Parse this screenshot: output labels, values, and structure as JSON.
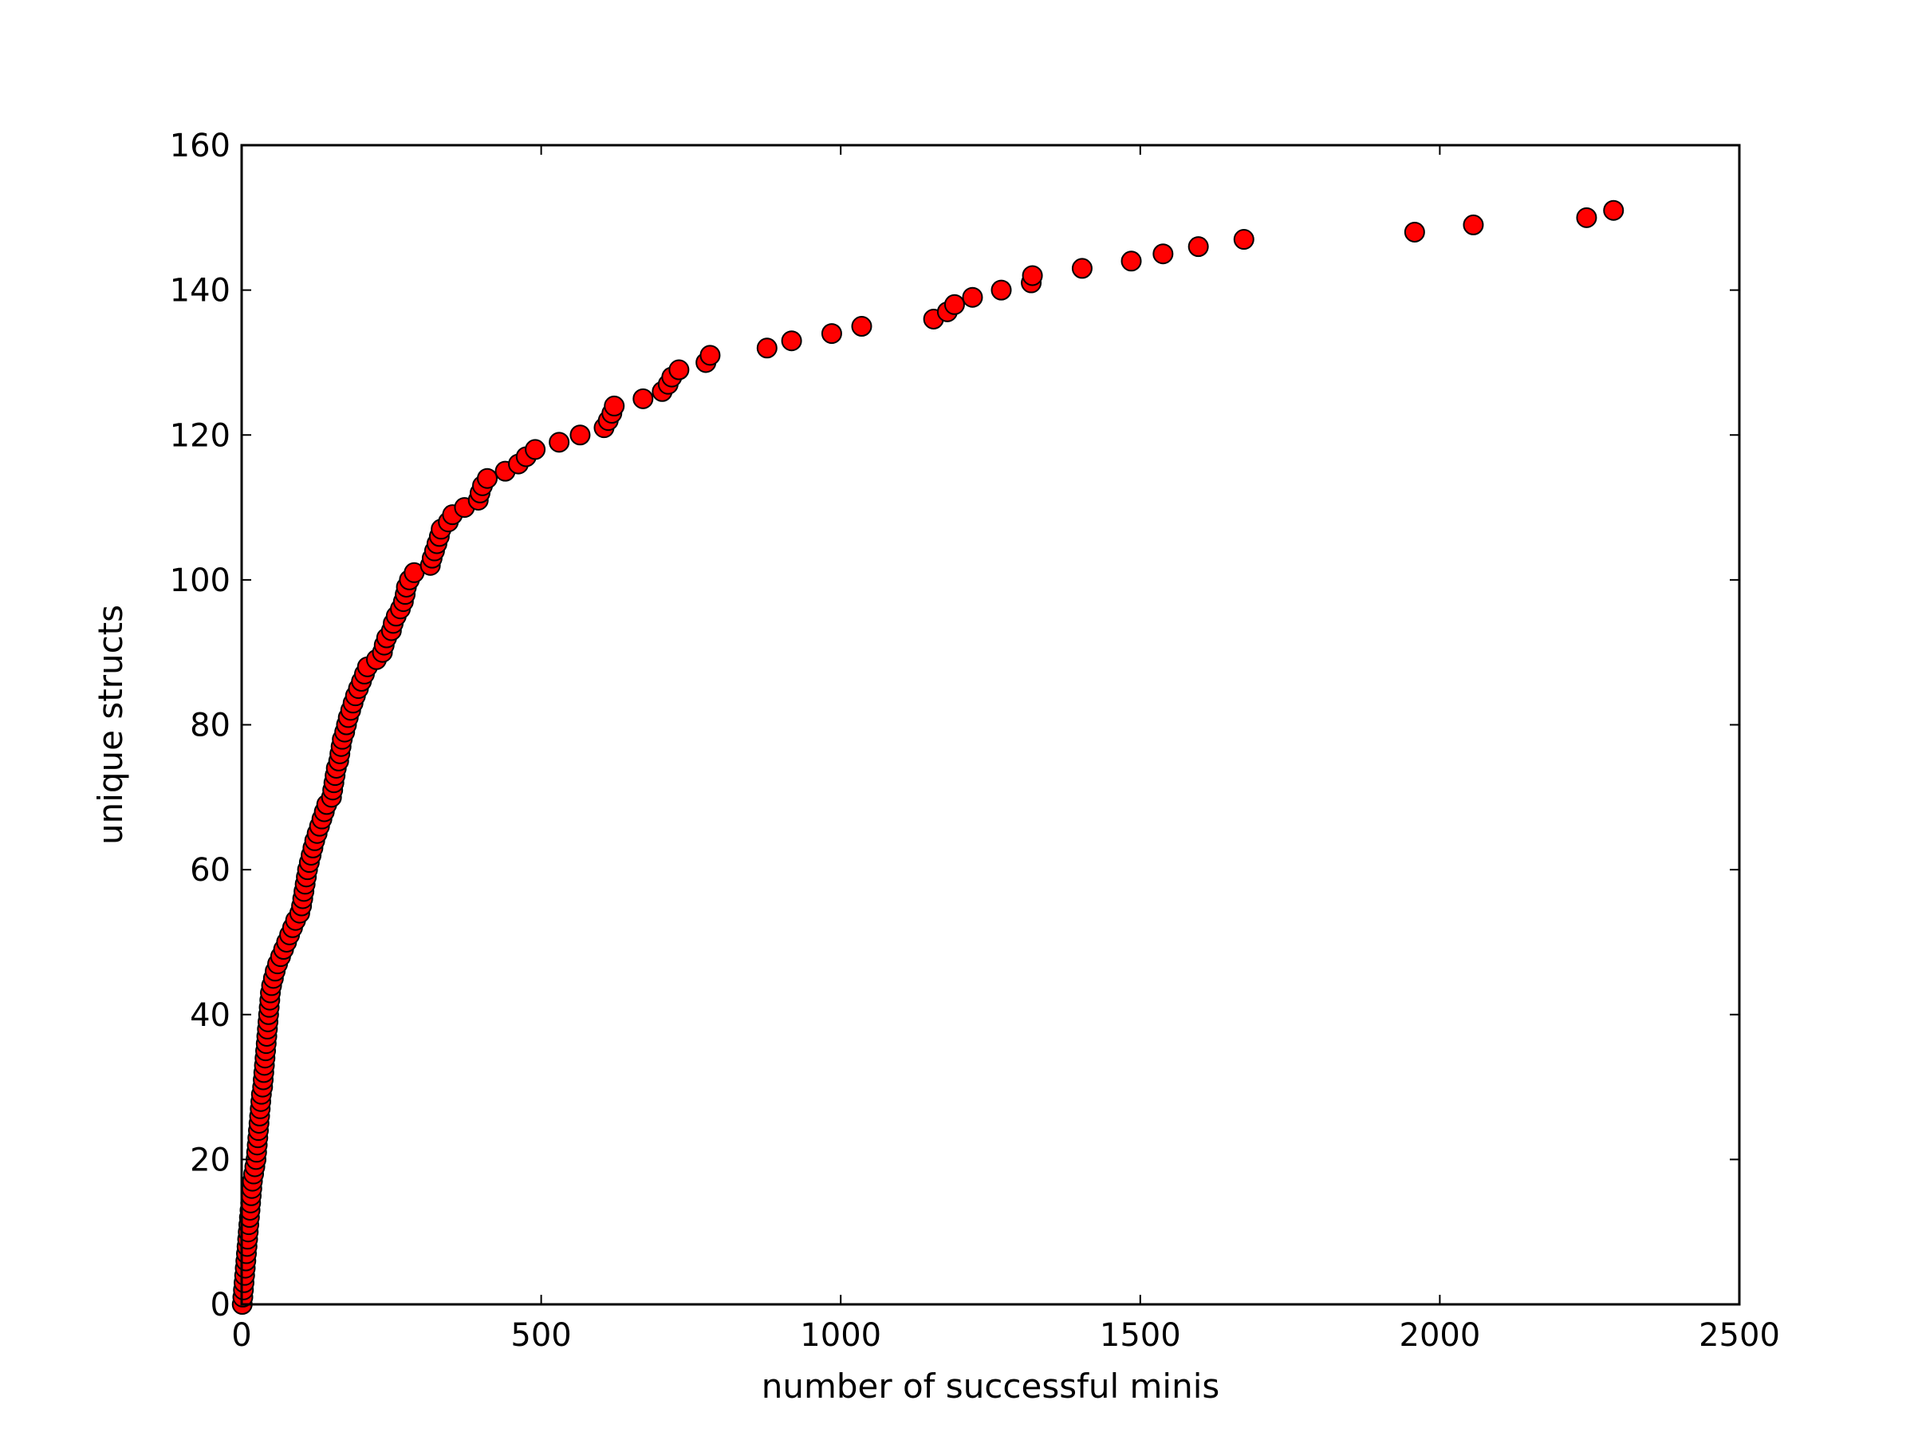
{
  "chart_data": {
    "type": "scatter",
    "xlabel": "number of successful minis",
    "ylabel": "unique structs",
    "xlim": [
      0,
      2500
    ],
    "ylim": [
      0,
      160
    ],
    "xticks": [
      0,
      500,
      1000,
      1500,
      2000,
      2500
    ],
    "yticks": [
      0,
      20,
      40,
      60,
      80,
      100,
      120,
      140,
      160
    ],
    "grid": false,
    "legend": "none",
    "marker_color": "#ff0000",
    "marker_edge_color": "#000000",
    "series": [
      {
        "points": [
          [
            1,
            0
          ],
          [
            2,
            1
          ],
          [
            3,
            2
          ],
          [
            4,
            3
          ],
          [
            5,
            4
          ],
          [
            6,
            5
          ],
          [
            7,
            6
          ],
          [
            8,
            7
          ],
          [
            9,
            8
          ],
          [
            10,
            9
          ],
          [
            11,
            10
          ],
          [
            12,
            11
          ],
          [
            13,
            12
          ],
          [
            14,
            13
          ],
          [
            15,
            14
          ],
          [
            16,
            15
          ],
          [
            17,
            16
          ],
          [
            18,
            17
          ],
          [
            20,
            18
          ],
          [
            22,
            19
          ],
          [
            24,
            20
          ],
          [
            25,
            21
          ],
          [
            26,
            22
          ],
          [
            27,
            23
          ],
          [
            28,
            24
          ],
          [
            29,
            25
          ],
          [
            30,
            26
          ],
          [
            31,
            27
          ],
          [
            32,
            28
          ],
          [
            33,
            29
          ],
          [
            35,
            30
          ],
          [
            36,
            31
          ],
          [
            37,
            32
          ],
          [
            38,
            33
          ],
          [
            39,
            34
          ],
          [
            40,
            35
          ],
          [
            41,
            36
          ],
          [
            42,
            37
          ],
          [
            43,
            38
          ],
          [
            44,
            39
          ],
          [
            45,
            40
          ],
          [
            46,
            41
          ],
          [
            47,
            42
          ],
          [
            48,
            43
          ],
          [
            50,
            44
          ],
          [
            53,
            45
          ],
          [
            56,
            46
          ],
          [
            60,
            47
          ],
          [
            65,
            48
          ],
          [
            70,
            49
          ],
          [
            75,
            50
          ],
          [
            80,
            51
          ],
          [
            85,
            52
          ],
          [
            90,
            53
          ],
          [
            97,
            54
          ],
          [
            100,
            55
          ],
          [
            102,
            56
          ],
          [
            104,
            57
          ],
          [
            106,
            58
          ],
          [
            108,
            59
          ],
          [
            110,
            60
          ],
          [
            113,
            61
          ],
          [
            116,
            62
          ],
          [
            119,
            63
          ],
          [
            122,
            64
          ],
          [
            126,
            65
          ],
          [
            130,
            66
          ],
          [
            134,
            67
          ],
          [
            138,
            68
          ],
          [
            142,
            69
          ],
          [
            150,
            70
          ],
          [
            152,
            71
          ],
          [
            154,
            72
          ],
          [
            156,
            73
          ],
          [
            158,
            74
          ],
          [
            162,
            75
          ],
          [
            164,
            76
          ],
          [
            166,
            77
          ],
          [
            168,
            78
          ],
          [
            172,
            79
          ],
          [
            175,
            80
          ],
          [
            178,
            81
          ],
          [
            182,
            82
          ],
          [
            186,
            83
          ],
          [
            190,
            84
          ],
          [
            195,
            85
          ],
          [
            200,
            86
          ],
          [
            205,
            87
          ],
          [
            210,
            88
          ],
          [
            225,
            89
          ],
          [
            235,
            90
          ],
          [
            238,
            91
          ],
          [
            242,
            92
          ],
          [
            250,
            93
          ],
          [
            253,
            94
          ],
          [
            258,
            95
          ],
          [
            265,
            96
          ],
          [
            270,
            97
          ],
          [
            273,
            98
          ],
          [
            275,
            99
          ],
          [
            280,
            100
          ],
          [
            288,
            101
          ],
          [
            315,
            102
          ],
          [
            318,
            103
          ],
          [
            322,
            104
          ],
          [
            326,
            105
          ],
          [
            330,
            106
          ],
          [
            333,
            107
          ],
          [
            345,
            108
          ],
          [
            352,
            109
          ],
          [
            372,
            110
          ],
          [
            395,
            111
          ],
          [
            398,
            112
          ],
          [
            402,
            113
          ],
          [
            410,
            114
          ],
          [
            440,
            115
          ],
          [
            462,
            116
          ],
          [
            475,
            117
          ],
          [
            490,
            118
          ],
          [
            530,
            119
          ],
          [
            565,
            120
          ],
          [
            605,
            121
          ],
          [
            612,
            122
          ],
          [
            618,
            123
          ],
          [
            622,
            124
          ],
          [
            670,
            125
          ],
          [
            702,
            126
          ],
          [
            712,
            127
          ],
          [
            718,
            128
          ],
          [
            730,
            129
          ],
          [
            775,
            130
          ],
          [
            782,
            131
          ],
          [
            877,
            132
          ],
          [
            918,
            133
          ],
          [
            985,
            134
          ],
          [
            1035,
            135
          ],
          [
            1155,
            136
          ],
          [
            1178,
            137
          ],
          [
            1190,
            138
          ],
          [
            1220,
            139
          ],
          [
            1268,
            140
          ],
          [
            1318,
            141
          ],
          [
            1320,
            142
          ],
          [
            1403,
            143
          ],
          [
            1485,
            144
          ],
          [
            1538,
            145
          ],
          [
            1597,
            146
          ],
          [
            1673,
            147
          ],
          [
            1958,
            148
          ],
          [
            2056,
            149
          ],
          [
            2245,
            150
          ],
          [
            2290,
            151
          ]
        ]
      }
    ]
  }
}
